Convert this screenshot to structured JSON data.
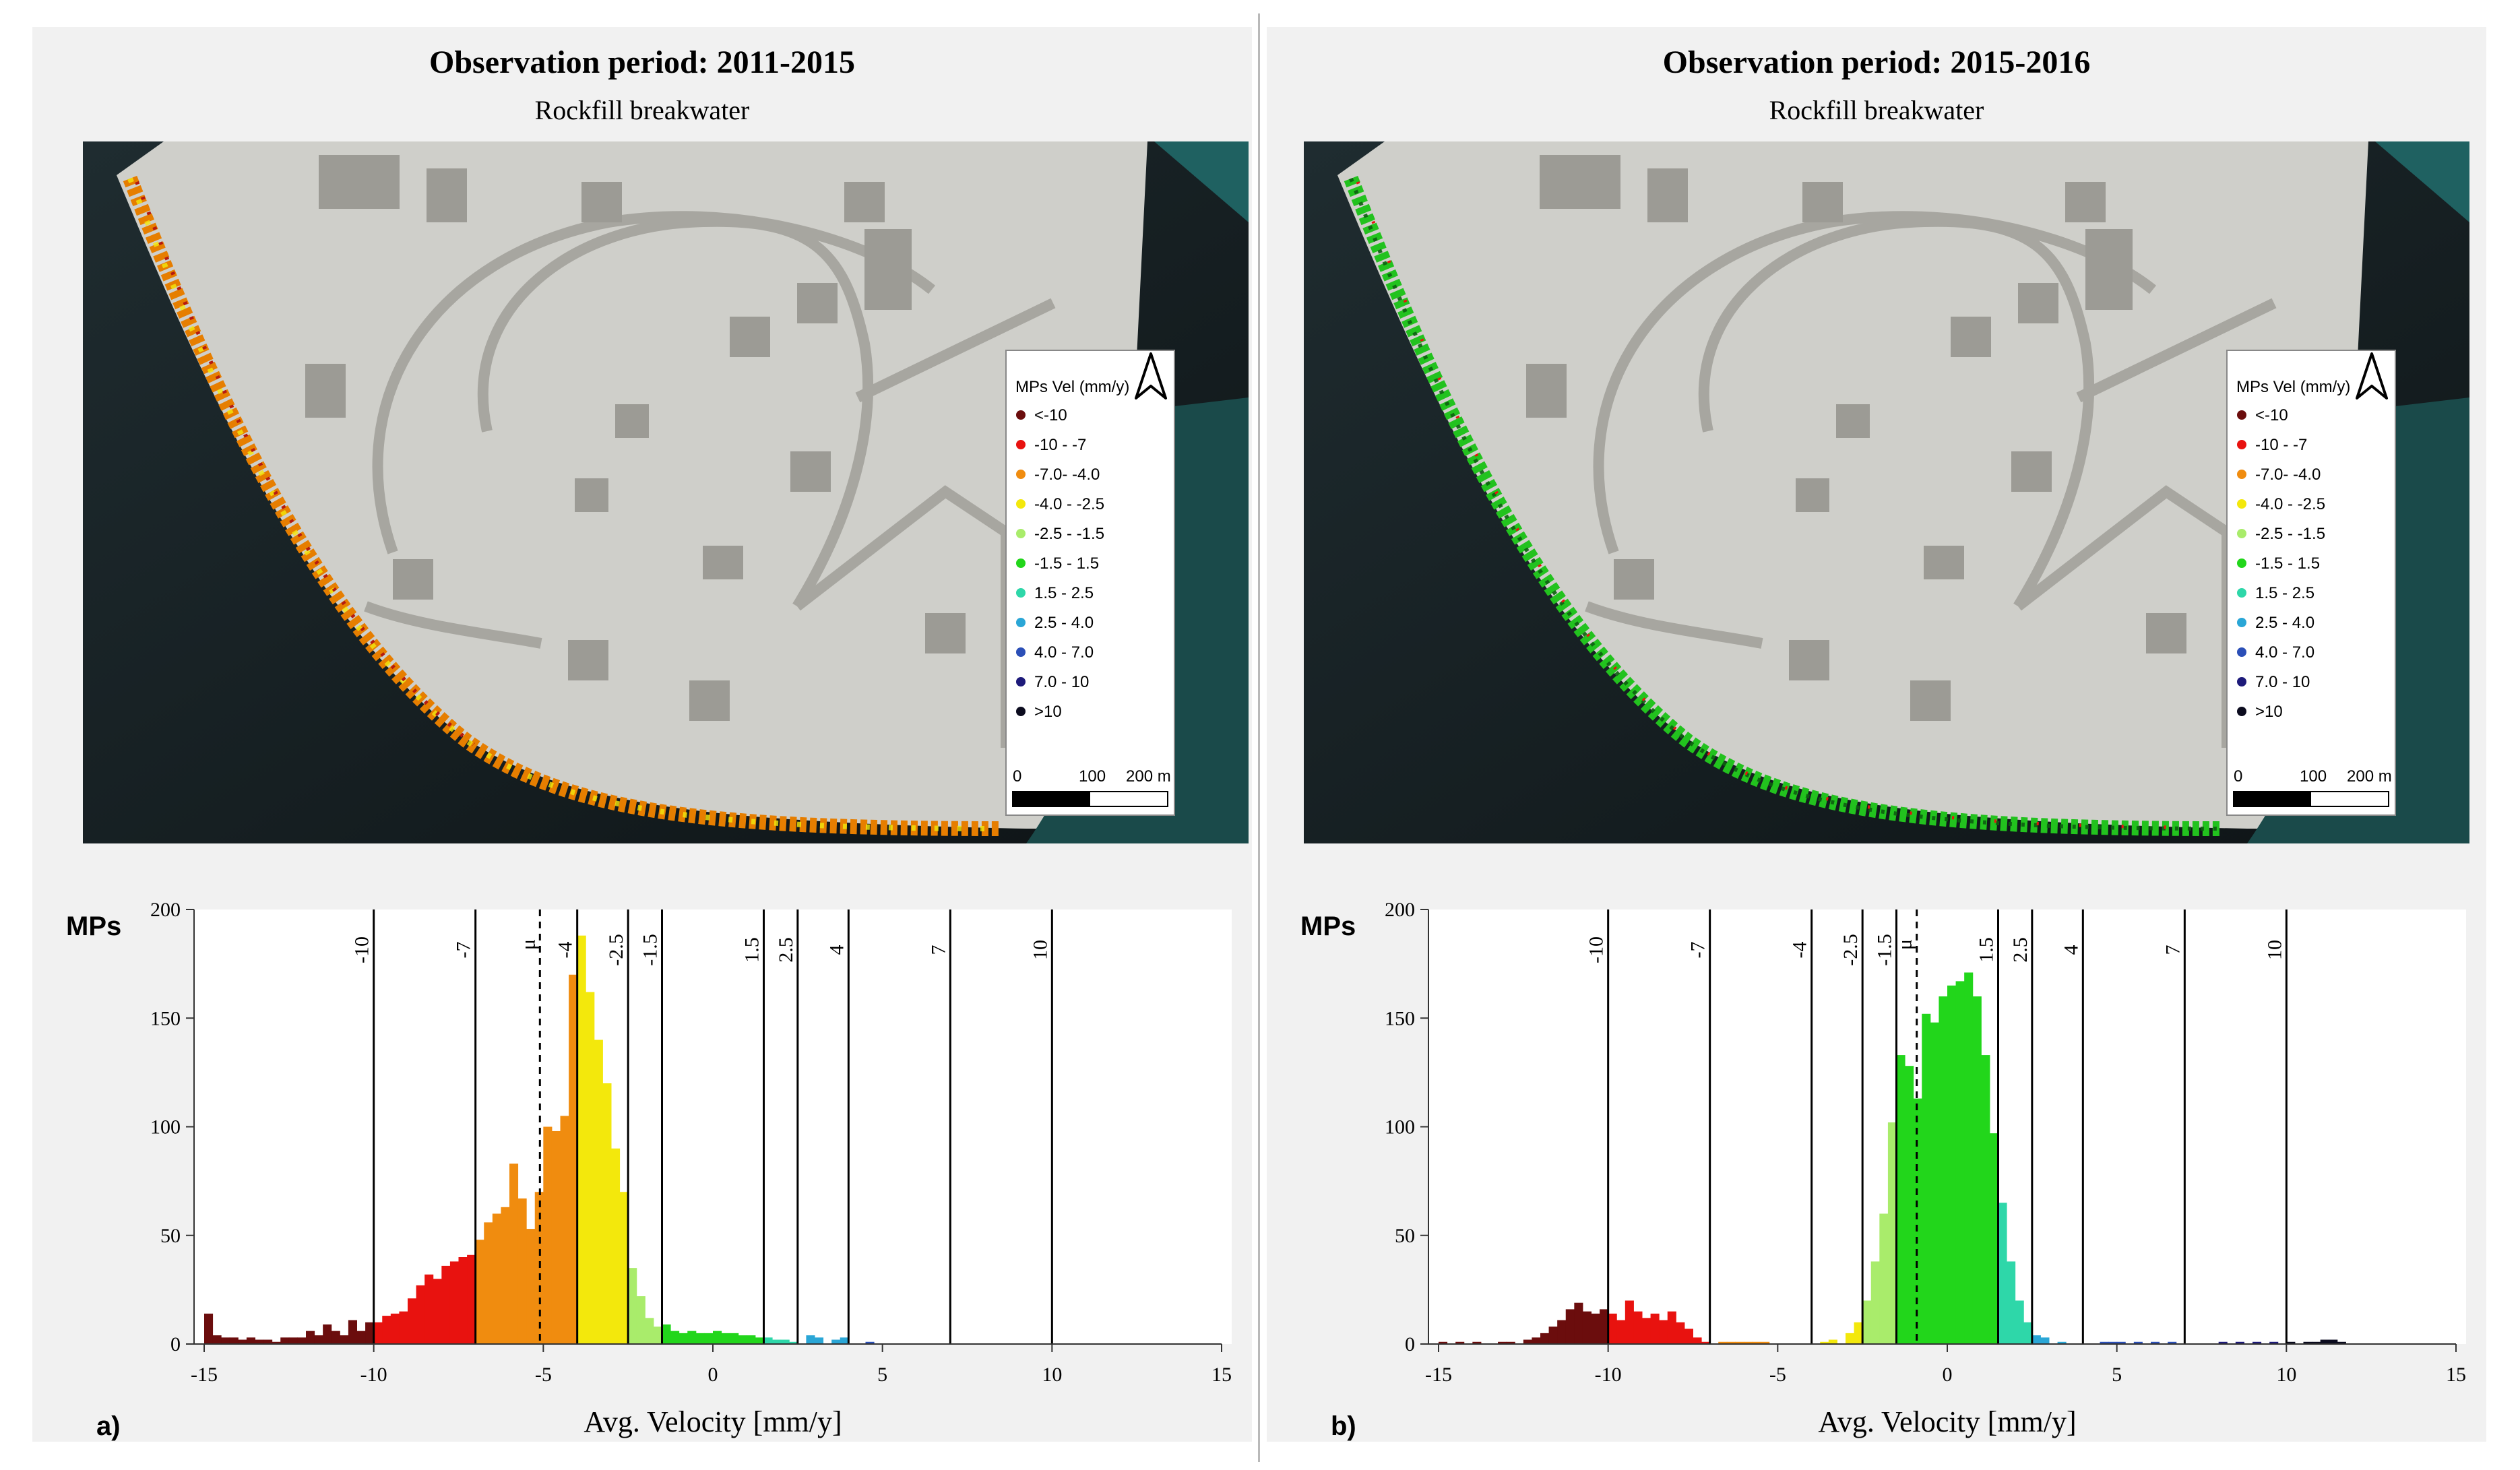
{
  "panels": [
    {
      "title": "Observation period: 2011-2015",
      "subtitle": "Rockfill breakwater",
      "panel_label": "a)",
      "coast_color": "#e67e00"
    },
    {
      "title": "Observation period: 2015-2016",
      "subtitle": "Rockfill breakwater",
      "panel_label": "b)",
      "coast_color": "#22c21e"
    }
  ],
  "legend": {
    "title": "MPs Vel (mm/y)",
    "items": [
      {
        "label": "<-10",
        "color": "#6b0d0d"
      },
      {
        "label": "-10 - -7",
        "color": "#e8120f"
      },
      {
        "label": "-7.0- -4.0",
        "color": "#f08c0f"
      },
      {
        "label": "-4.0 - -2.5",
        "color": "#f3e80c"
      },
      {
        "label": "-2.5 - -1.5",
        "color": "#a9ec6b"
      },
      {
        "label": "-1.5 - 1.5",
        "color": "#22d61b"
      },
      {
        "label": "1.5 - 2.5",
        "color": "#2ed7a9"
      },
      {
        "label": "2.5 - 4.0",
        "color": "#2aa6d6"
      },
      {
        "label": "4.0 - 7.0",
        "color": "#2b4fb7"
      },
      {
        "label": "7.0 - 10",
        "color": "#1d1a7a"
      },
      {
        "label": ">10",
        "color": "#0b0b1e"
      }
    ],
    "scale_labels": [
      "0",
      "100",
      "200 m"
    ]
  },
  "chart_data": [
    {
      "type": "bar",
      "title": "Observation period: 2011-2015",
      "xlabel": "Avg. Velocity [mm/y]",
      "ylabel": "MPs",
      "xlim": [
        -15,
        15
      ],
      "ylim": [
        0,
        200
      ],
      "xticks": [
        -15,
        -10,
        -5,
        0,
        5,
        10,
        15
      ],
      "yticks": [
        0,
        50,
        100,
        150,
        200
      ],
      "class_boundaries": [
        {
          "x": -10,
          "label": "-10"
        },
        {
          "x": -7,
          "label": "-7"
        },
        {
          "x": -4,
          "label": "-4"
        },
        {
          "x": -2.5,
          "label": "-2.5"
        },
        {
          "x": -1.5,
          "label": "-1.5"
        },
        {
          "x": 1.5,
          "label": "1.5"
        },
        {
          "x": 2.5,
          "label": "2.5"
        },
        {
          "x": 4,
          "label": "4"
        },
        {
          "x": 7,
          "label": "7"
        },
        {
          "x": 10,
          "label": "10"
        }
      ],
      "mean": -5.1,
      "mean_label": "μ",
      "bin_width": 0.25,
      "bins": [
        [
          -15.0,
          14
        ],
        [
          -14.75,
          4
        ],
        [
          -14.5,
          3
        ],
        [
          -14.25,
          3
        ],
        [
          -14.0,
          2
        ],
        [
          -13.75,
          3
        ],
        [
          -13.5,
          2
        ],
        [
          -13.25,
          2
        ],
        [
          -13.0,
          1
        ],
        [
          -12.75,
          3
        ],
        [
          -12.5,
          3
        ],
        [
          -12.25,
          3
        ],
        [
          -12.0,
          6
        ],
        [
          -11.75,
          4
        ],
        [
          -11.5,
          9
        ],
        [
          -11.25,
          6
        ],
        [
          -11.0,
          4
        ],
        [
          -10.75,
          11
        ],
        [
          -10.5,
          6
        ],
        [
          -10.25,
          10
        ],
        [
          -10.0,
          10
        ],
        [
          -9.75,
          13
        ],
        [
          -9.5,
          14
        ],
        [
          -9.25,
          15
        ],
        [
          -9.0,
          21
        ],
        [
          -8.75,
          27
        ],
        [
          -8.5,
          32
        ],
        [
          -8.25,
          30
        ],
        [
          -8.0,
          36
        ],
        [
          -7.75,
          38
        ],
        [
          -7.5,
          40
        ],
        [
          -7.25,
          41
        ],
        [
          -7.0,
          48
        ],
        [
          -6.75,
          56
        ],
        [
          -6.5,
          60
        ],
        [
          -6.25,
          63
        ],
        [
          -6.0,
          83
        ],
        [
          -5.75,
          67
        ],
        [
          -5.5,
          53
        ],
        [
          -5.25,
          70
        ],
        [
          -5.0,
          100
        ],
        [
          -4.75,
          98
        ],
        [
          -4.5,
          105
        ],
        [
          -4.25,
          170
        ],
        [
          -4.0,
          188
        ],
        [
          -3.75,
          162
        ],
        [
          -3.5,
          140
        ],
        [
          -3.25,
          120
        ],
        [
          -3.0,
          90
        ],
        [
          -2.75,
          70
        ],
        [
          -2.5,
          35
        ],
        [
          -2.25,
          22
        ],
        [
          -2.0,
          12
        ],
        [
          -1.75,
          8
        ],
        [
          -1.5,
          9
        ],
        [
          -1.25,
          6
        ],
        [
          -1.0,
          5
        ],
        [
          -0.75,
          6
        ],
        [
          -0.5,
          5
        ],
        [
          -0.25,
          5
        ],
        [
          0.0,
          6
        ],
        [
          0.25,
          5
        ],
        [
          0.5,
          5
        ],
        [
          0.75,
          4
        ],
        [
          1.0,
          4
        ],
        [
          1.25,
          3
        ],
        [
          1.5,
          3
        ],
        [
          1.75,
          2
        ],
        [
          2.0,
          2
        ],
        [
          2.25,
          1
        ],
        [
          2.75,
          4
        ],
        [
          3.0,
          3
        ],
        [
          3.5,
          2
        ],
        [
          3.75,
          3
        ],
        [
          4.5,
          1
        ]
      ]
    },
    {
      "type": "bar",
      "title": "Observation period: 2015-2016",
      "xlabel": "Avg. Velocity [mm/y]",
      "ylabel": "MPs",
      "xlim": [
        -15,
        15
      ],
      "ylim": [
        0,
        200
      ],
      "xticks": [
        -15,
        -10,
        -5,
        0,
        5,
        10,
        15
      ],
      "yticks": [
        0,
        50,
        100,
        150,
        200
      ],
      "class_boundaries": [
        {
          "x": -10,
          "label": "-10"
        },
        {
          "x": -7,
          "label": "-7"
        },
        {
          "x": -4,
          "label": "-4"
        },
        {
          "x": -2.5,
          "label": "-2.5"
        },
        {
          "x": -1.5,
          "label": "-1.5"
        },
        {
          "x": 1.5,
          "label": "1.5"
        },
        {
          "x": 2.5,
          "label": "2.5"
        },
        {
          "x": 4,
          "label": "4"
        },
        {
          "x": 7,
          "label": "7"
        },
        {
          "x": 10,
          "label": "10"
        }
      ],
      "mean": -0.9,
      "mean_label": "μ",
      "bin_width": 0.25,
      "bins": [
        [
          -15.0,
          1
        ],
        [
          -14.5,
          1
        ],
        [
          -14.0,
          1
        ],
        [
          -13.25,
          1
        ],
        [
          -13.0,
          1
        ],
        [
          -12.5,
          2
        ],
        [
          -12.25,
          3
        ],
        [
          -12.0,
          5
        ],
        [
          -11.75,
          8
        ],
        [
          -11.5,
          11
        ],
        [
          -11.25,
          16
        ],
        [
          -11.0,
          19
        ],
        [
          -10.75,
          15
        ],
        [
          -10.5,
          14
        ],
        [
          -10.25,
          16
        ],
        [
          -10.0,
          14
        ],
        [
          -9.75,
          11
        ],
        [
          -9.5,
          20
        ],
        [
          -9.25,
          15
        ],
        [
          -9.0,
          12
        ],
        [
          -8.75,
          14
        ],
        [
          -8.5,
          11
        ],
        [
          -8.25,
          15
        ],
        [
          -8.0,
          10
        ],
        [
          -7.75,
          7
        ],
        [
          -7.5,
          3
        ],
        [
          -7.25,
          1
        ],
        [
          -6.75,
          1
        ],
        [
          -6.5,
          1
        ],
        [
          -6.25,
          1
        ],
        [
          -6.0,
          1
        ],
        [
          -5.75,
          1
        ],
        [
          -5.5,
          1
        ],
        [
          -3.75,
          1
        ],
        [
          -3.5,
          2
        ],
        [
          -3.0,
          5
        ],
        [
          -2.75,
          10
        ],
        [
          -2.5,
          20
        ],
        [
          -2.25,
          38
        ],
        [
          -2.0,
          60
        ],
        [
          -1.75,
          102
        ],
        [
          -1.5,
          133
        ],
        [
          -1.25,
          128
        ],
        [
          -1.0,
          113
        ],
        [
          -0.75,
          152
        ],
        [
          -0.5,
          148
        ],
        [
          -0.25,
          160
        ],
        [
          0.0,
          165
        ],
        [
          0.25,
          167
        ],
        [
          0.5,
          171
        ],
        [
          0.75,
          160
        ],
        [
          1.0,
          133
        ],
        [
          1.25,
          97
        ],
        [
          1.5,
          65
        ],
        [
          1.75,
          38
        ],
        [
          2.0,
          20
        ],
        [
          2.25,
          10
        ],
        [
          2.5,
          4
        ],
        [
          2.75,
          3
        ],
        [
          3.25,
          1
        ],
        [
          4.5,
          1
        ],
        [
          4.75,
          1
        ],
        [
          5.0,
          1
        ],
        [
          5.5,
          1
        ],
        [
          6.0,
          1
        ],
        [
          6.5,
          1
        ],
        [
          8.0,
          1
        ],
        [
          8.5,
          1
        ],
        [
          9.0,
          1
        ],
        [
          9.5,
          1
        ],
        [
          10.0,
          1
        ],
        [
          10.5,
          1
        ],
        [
          10.75,
          1
        ],
        [
          11.0,
          2
        ],
        [
          11.25,
          2
        ],
        [
          11.5,
          1
        ]
      ]
    }
  ]
}
